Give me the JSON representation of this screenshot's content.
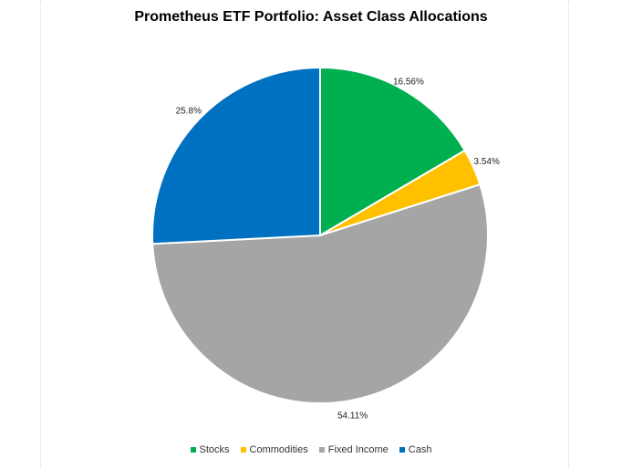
{
  "chart_data": {
    "type": "pie",
    "title": "Prometheus ETF Portfolio: Asset Class Allocations",
    "categories": [
      "Stocks",
      "Commodities",
      "Fixed Income",
      "Cash"
    ],
    "values": [
      16.56,
      3.54,
      54.11,
      25.8
    ],
    "labels": [
      "16.56%",
      "3.54%",
      "54.11%",
      "25.8%"
    ],
    "colors": [
      "#00b050",
      "#ffc000",
      "#a5a5a5",
      "#0070c0"
    ],
    "legend_position": "bottom",
    "start_angle": "12 o'clock",
    "direction": "clockwise"
  }
}
